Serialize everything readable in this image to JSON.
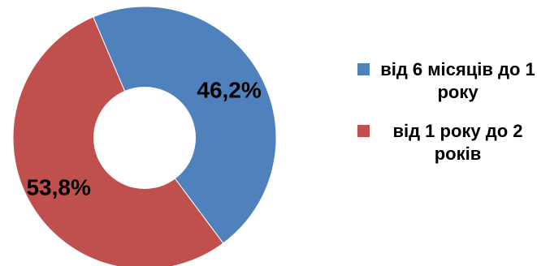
{
  "chart_data": {
    "type": "pie",
    "variant": "doughnut",
    "title": "",
    "series": [
      {
        "name": "від 6 місяців до 1 року",
        "value": 46.2,
        "label": "46,2%",
        "color": "#4F81BD"
      },
      {
        "name": "від 1 року до 2 років",
        "value": 53.8,
        "label": "53,8%",
        "color": "#C0504D"
      }
    ],
    "legend": {
      "position": "right"
    }
  }
}
